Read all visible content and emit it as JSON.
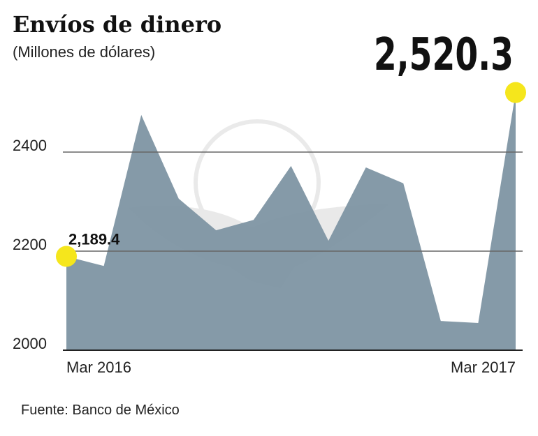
{
  "chart_data": {
    "type": "area",
    "title": "Envíos de dinero",
    "subtitle": "(Millones de dólares)",
    "source": "Fuente: Banco de México",
    "categories": [
      "Mar 2016",
      null,
      null,
      null,
      null,
      null,
      null,
      null,
      null,
      null,
      null,
      null,
      "Mar 2017"
    ],
    "values": [
      2189.4,
      2170,
      2475,
      2306,
      2242,
      2263,
      2372,
      2221,
      2369,
      2337,
      2059,
      2055,
      2520.3
    ],
    "value_labels": [
      "2,189.4",
      null,
      null,
      null,
      null,
      null,
      null,
      null,
      null,
      null,
      null,
      null,
      "2,520.3"
    ],
    "color": "#7e95a3",
    "highlight_color": "#f5e61c",
    "ylim": [
      2000,
      2550
    ],
    "yticks": [
      2000,
      2200,
      2400
    ],
    "grid": true
  }
}
